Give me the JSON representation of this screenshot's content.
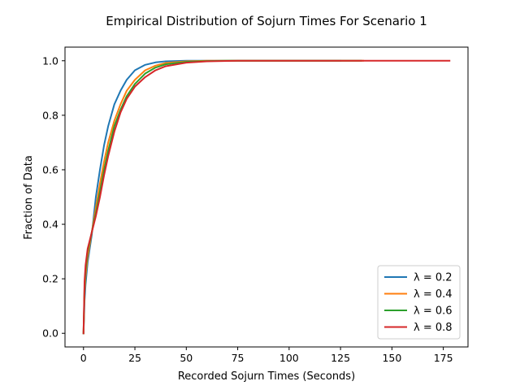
{
  "chart_data": {
    "type": "line",
    "title": "Empirical Distribution of Sojurn Times For Scenario 1",
    "xlabel": "Recorded Sojurn Times (Seconds)",
    "ylabel": "Fraction of Data",
    "xlim": [
      -9,
      187
    ],
    "ylim": [
      -0.05,
      1.05
    ],
    "xticks": [
      0,
      25,
      50,
      75,
      100,
      125,
      150,
      175
    ],
    "yticks": [
      0.0,
      0.2,
      0.4,
      0.6,
      0.8,
      1.0
    ],
    "xtick_labels": [
      "0",
      "25",
      "50",
      "75",
      "100",
      "125",
      "150",
      "175"
    ],
    "ytick_labels": [
      "0.0",
      "0.2",
      "0.4",
      "0.6",
      "0.8",
      "1.0"
    ],
    "grid": false,
    "legend_position": "lower-right",
    "series": [
      {
        "name": "λ = 0.2",
        "color": "#1f77b4",
        "points": [
          [
            0,
            0.0
          ],
          [
            0.5,
            0.12
          ],
          [
            1,
            0.18
          ],
          [
            2,
            0.26
          ],
          [
            4,
            0.36
          ],
          [
            6,
            0.5
          ],
          [
            8,
            0.6
          ],
          [
            10,
            0.69
          ],
          [
            12,
            0.76
          ],
          [
            15,
            0.84
          ],
          [
            18,
            0.89
          ],
          [
            21,
            0.93
          ],
          [
            25,
            0.965
          ],
          [
            30,
            0.985
          ],
          [
            35,
            0.994
          ],
          [
            40,
            0.998
          ],
          [
            50,
            1.0
          ],
          [
            70,
            1.0
          ],
          [
            100,
            1.0
          ],
          [
            125,
            1.0
          ]
        ]
      },
      {
        "name": "λ = 0.4",
        "color": "#ff7f0e",
        "points": [
          [
            0,
            0.0
          ],
          [
            0.5,
            0.15
          ],
          [
            1,
            0.21
          ],
          [
            2,
            0.28
          ],
          [
            4,
            0.37
          ],
          [
            6,
            0.46
          ],
          [
            8,
            0.55
          ],
          [
            10,
            0.63
          ],
          [
            12,
            0.7
          ],
          [
            15,
            0.78
          ],
          [
            18,
            0.84
          ],
          [
            21,
            0.89
          ],
          [
            25,
            0.93
          ],
          [
            30,
            0.965
          ],
          [
            35,
            0.982
          ],
          [
            40,
            0.992
          ],
          [
            50,
            0.998
          ],
          [
            60,
            1.0
          ],
          [
            100,
            1.0
          ],
          [
            136,
            1.0
          ]
        ]
      },
      {
        "name": "λ = 0.6",
        "color": "#2ca02c",
        "points": [
          [
            0,
            0.0
          ],
          [
            0.5,
            0.17
          ],
          [
            1,
            0.23
          ],
          [
            2,
            0.3
          ],
          [
            4,
            0.37
          ],
          [
            6,
            0.44
          ],
          [
            8,
            0.52
          ],
          [
            10,
            0.6
          ],
          [
            12,
            0.67
          ],
          [
            15,
            0.76
          ],
          [
            18,
            0.82
          ],
          [
            21,
            0.87
          ],
          [
            25,
            0.915
          ],
          [
            30,
            0.953
          ],
          [
            35,
            0.975
          ],
          [
            40,
            0.987
          ],
          [
            50,
            0.996
          ],
          [
            60,
            0.999
          ],
          [
            70,
            1.0
          ],
          [
            100,
            1.0
          ],
          [
            135,
            1.0
          ]
        ]
      },
      {
        "name": "λ = 0.8",
        "color": "#d62728",
        "points": [
          [
            0,
            0.0
          ],
          [
            0.5,
            0.19
          ],
          [
            1,
            0.25
          ],
          [
            2,
            0.31
          ],
          [
            4,
            0.37
          ],
          [
            6,
            0.43
          ],
          [
            8,
            0.5
          ],
          [
            10,
            0.58
          ],
          [
            12,
            0.65
          ],
          [
            15,
            0.74
          ],
          [
            18,
            0.81
          ],
          [
            21,
            0.86
          ],
          [
            25,
            0.905
          ],
          [
            30,
            0.94
          ],
          [
            35,
            0.965
          ],
          [
            40,
            0.98
          ],
          [
            50,
            0.993
          ],
          [
            60,
            0.998
          ],
          [
            75,
            1.0
          ],
          [
            100,
            1.0
          ],
          [
            150,
            1.0
          ],
          [
            178,
            1.0
          ]
        ]
      }
    ]
  }
}
